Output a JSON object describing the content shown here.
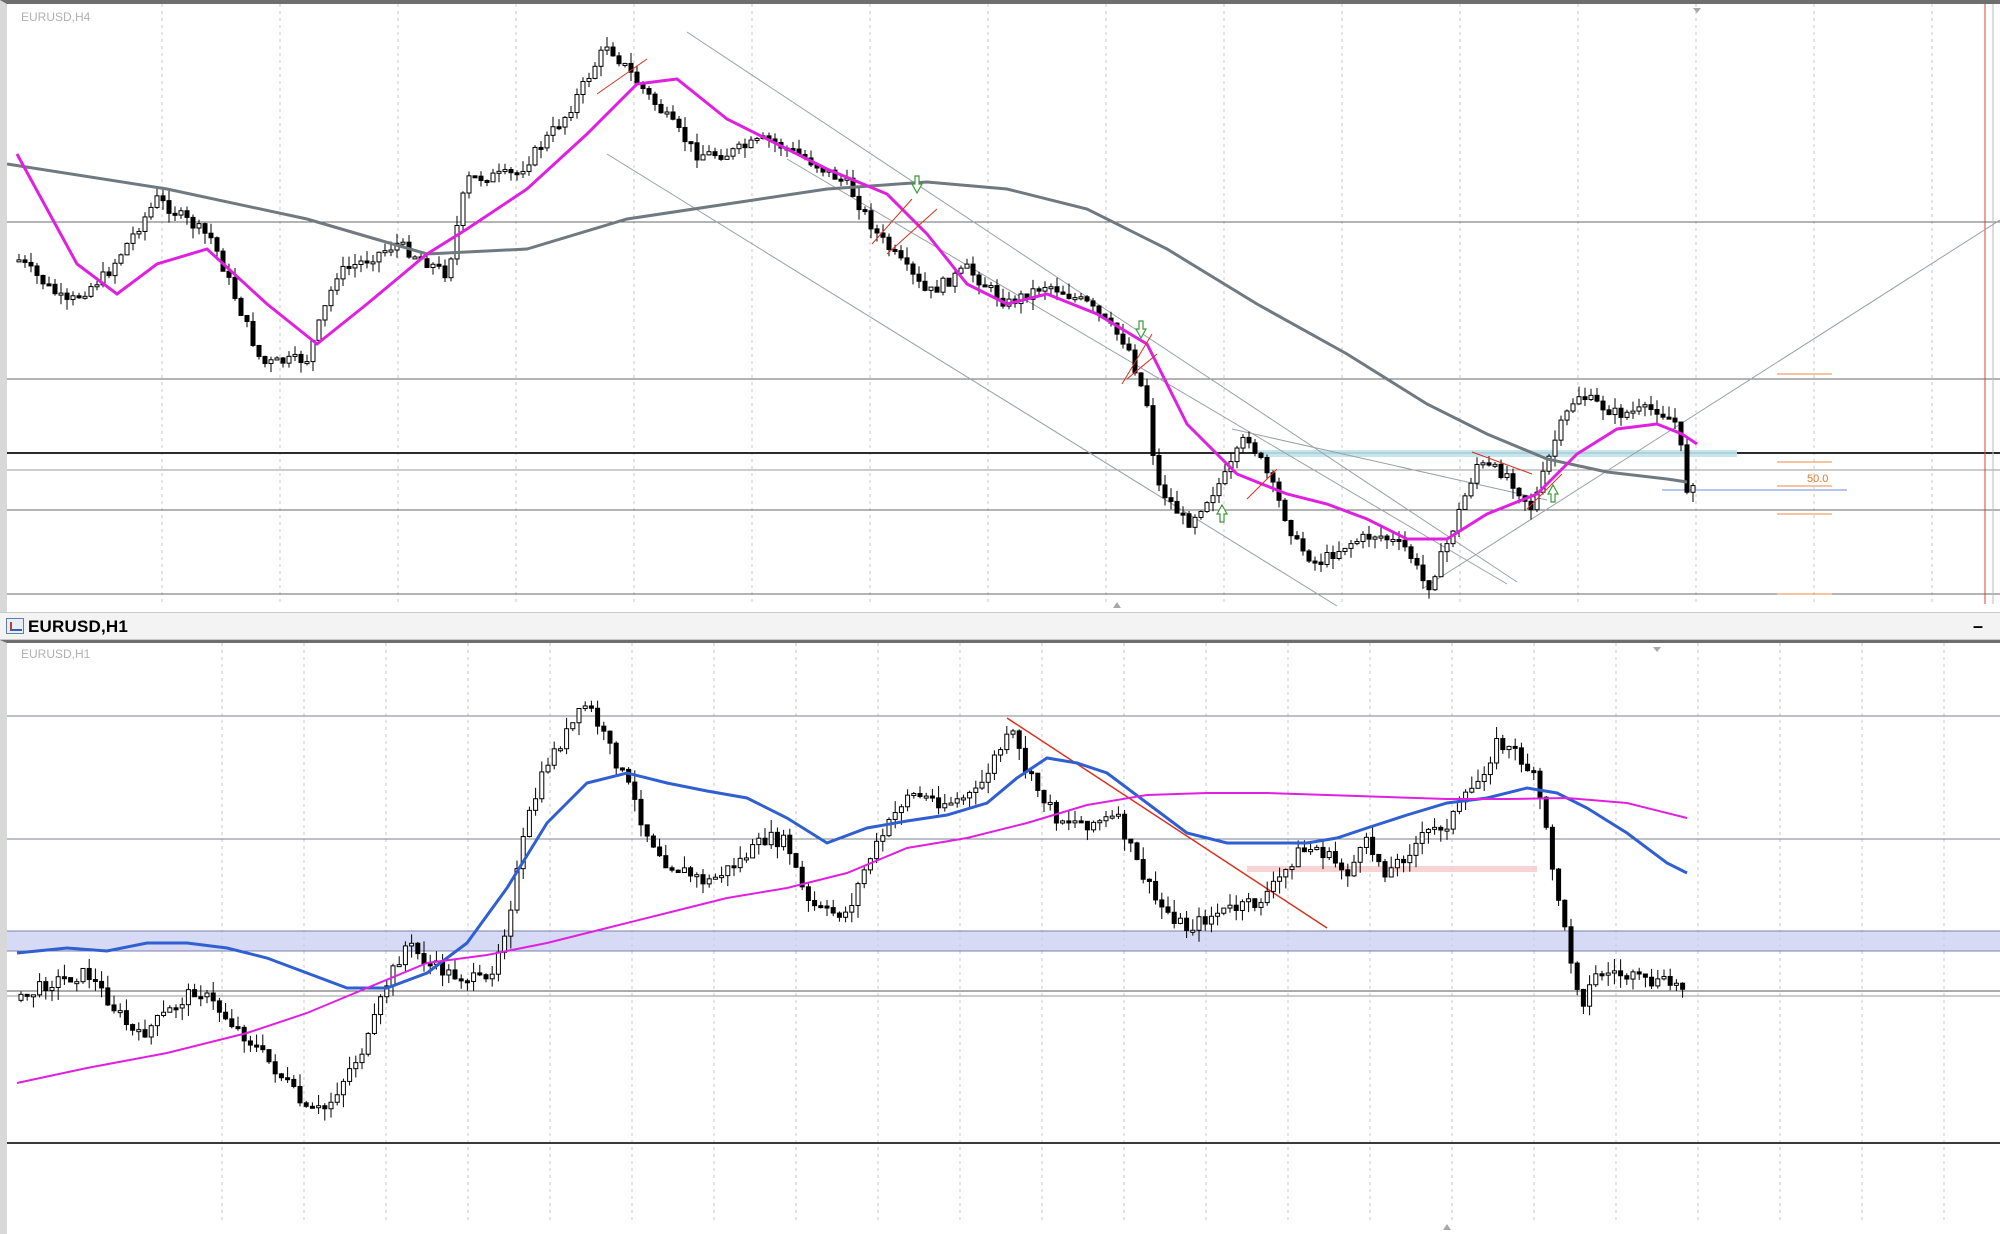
{
  "top_chart": {
    "corner_label": "EURUSD,H4",
    "fib_label": "50.0",
    "colors": {
      "ma_fast": "#e020e0",
      "ma_slow": "#707880",
      "red_line": "#d93020",
      "hline": "#2b2b2b"
    }
  },
  "title_bar": {
    "symbol_title": "EURUSD,H1",
    "minimize_icon": "minimize-icon"
  },
  "bottom_chart": {
    "corner_label": "EURUSD,H1",
    "colors": {
      "ma_fast": "#2f5fd0",
      "ma_slow": "#e020e0",
      "zone": "#c8cdf0",
      "red_line": "#d93020"
    }
  }
}
